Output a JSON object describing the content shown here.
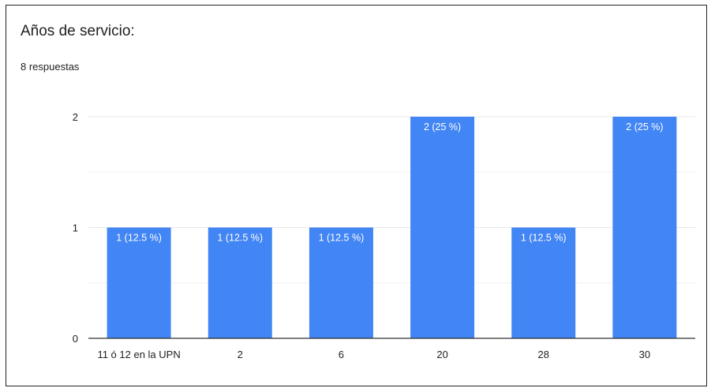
{
  "question": {
    "title": "Años de servicio:",
    "responses": "8 respuestas"
  },
  "colors": {
    "bar": "#4285f4",
    "grid": "#e8e8e8",
    "axis": "#333333"
  },
  "chart_data": {
    "type": "bar",
    "categories": [
      "11 ó 12 en la UPN",
      "2",
      "6",
      "20",
      "28",
      "30"
    ],
    "values": [
      1,
      1,
      1,
      2,
      1,
      2
    ],
    "data_labels": [
      "1 (12.5 %)",
      "1 (12.5 %)",
      "1 (12.5 %)",
      "2 (25 %)",
      "1 (12.5 %)",
      "2 (25 %)"
    ],
    "yticks": [
      "0",
      "1",
      "2"
    ],
    "ylim": [
      0,
      2
    ],
    "grid": true,
    "legend": "none"
  }
}
